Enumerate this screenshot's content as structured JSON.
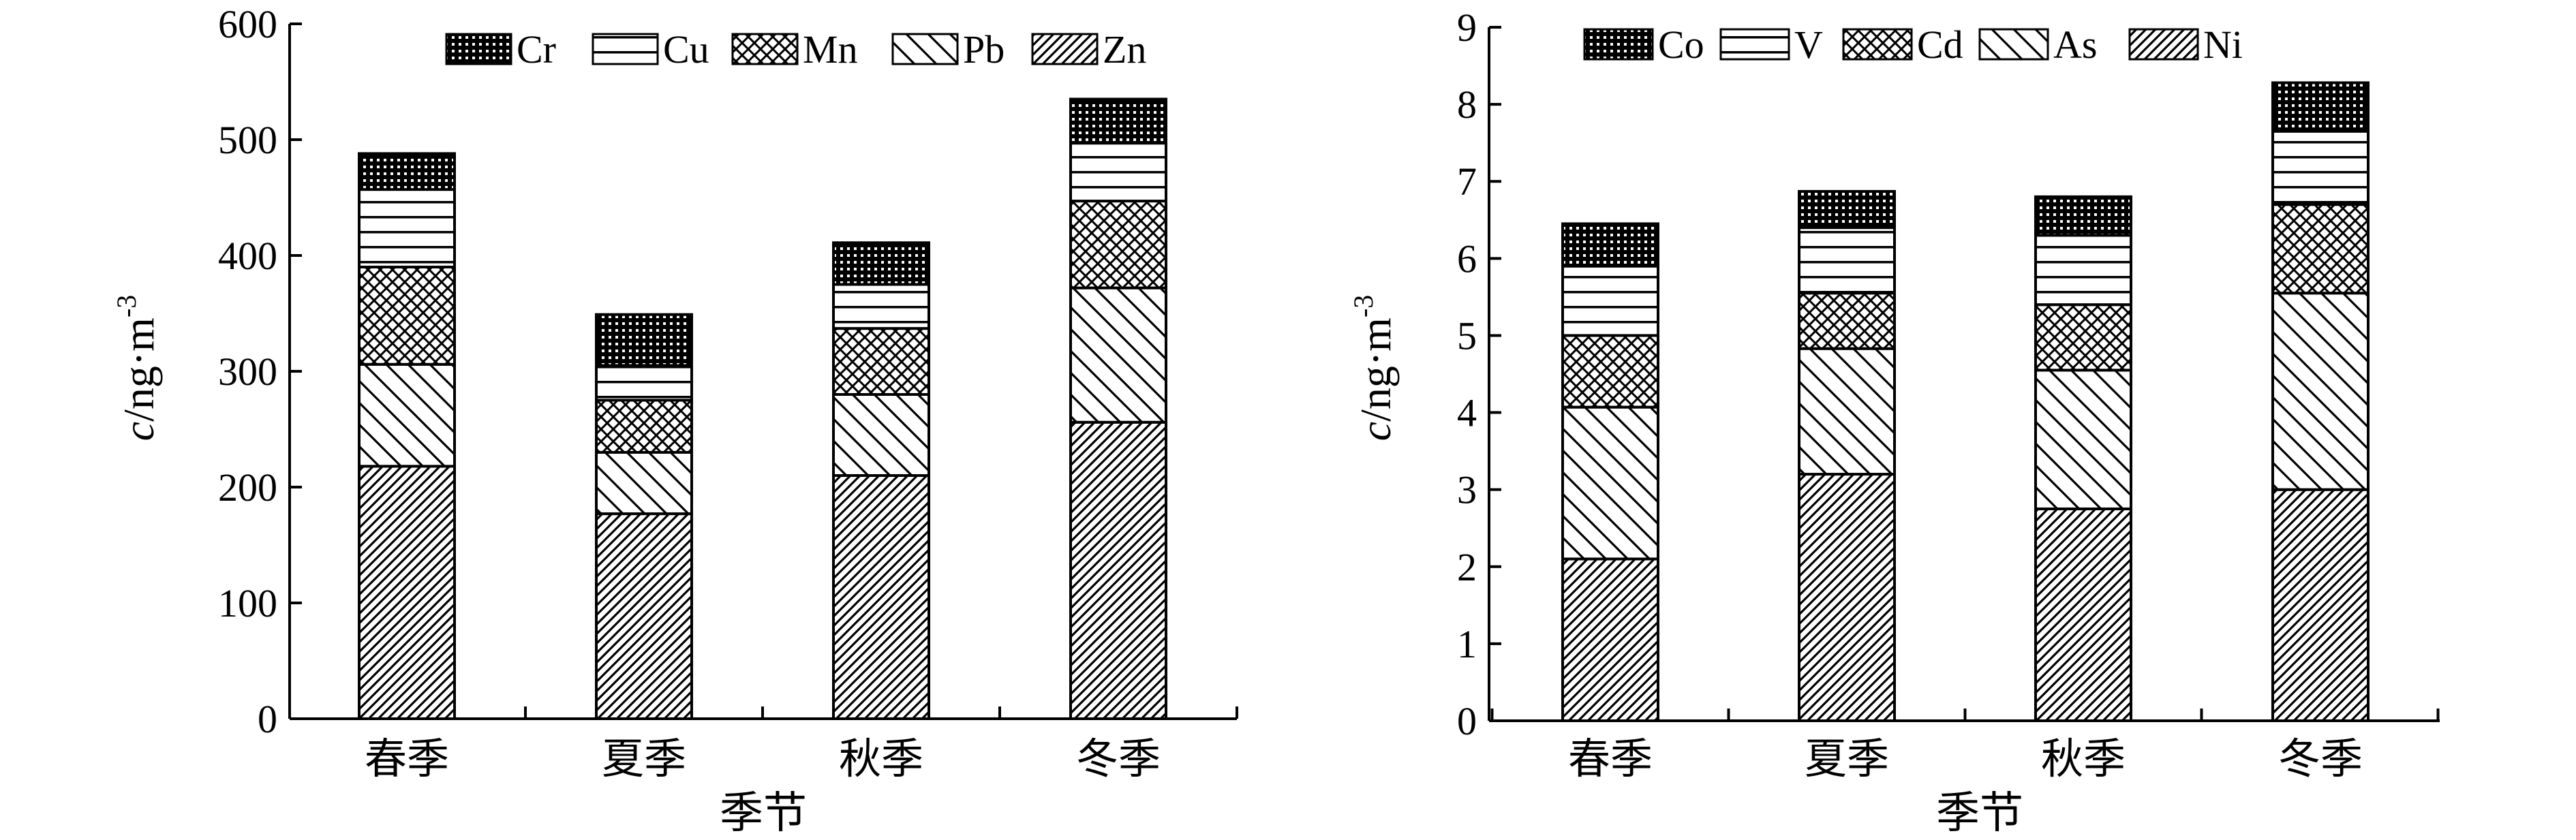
{
  "chart_data": [
    {
      "type": "bar",
      "stacked": true,
      "categories": [
        "春季",
        "夏季",
        "秋季",
        "冬季"
      ],
      "ylim": [
        0,
        600
      ],
      "yticks": [
        0,
        100,
        200,
        300,
        400,
        500,
        600
      ],
      "xlabel": "季节",
      "ylabel_main": "c",
      "ylabel_unit": "/ng·m",
      "ylabel_exp": "-3",
      "legend_position": "top",
      "series": [
        {
          "name": "Zn",
          "pattern": "diag-dense",
          "values": [
            218,
            177,
            210,
            256
          ]
        },
        {
          "name": "Pb",
          "pattern": "diag-back",
          "values": [
            88,
            53,
            70,
            116
          ]
        },
        {
          "name": "Mn",
          "pattern": "crosshatch",
          "values": [
            84,
            45,
            57,
            75
          ]
        },
        {
          "name": "Cu",
          "pattern": "horizontal",
          "values": [
            67,
            30,
            38,
            50
          ]
        },
        {
          "name": "Cr",
          "pattern": "dots",
          "values": [
            31,
            44,
            36,
            38
          ]
        }
      ]
    },
    {
      "type": "bar",
      "stacked": true,
      "categories": [
        "春季",
        "夏季",
        "秋季",
        "冬季"
      ],
      "ylim": [
        0,
        9
      ],
      "yticks": [
        0,
        1,
        2,
        3,
        4,
        5,
        6,
        7,
        8,
        9
      ],
      "xlabel": "季节",
      "ylabel_main": "c",
      "ylabel_unit": "/ng·m",
      "ylabel_exp": "-3",
      "legend_position": "top",
      "series": [
        {
          "name": "Ni",
          "pattern": "diag-dense",
          "values": [
            2.1,
            3.2,
            2.75,
            3.0
          ]
        },
        {
          "name": "As",
          "pattern": "diag-back",
          "values": [
            1.97,
            1.63,
            1.8,
            2.55
          ]
        },
        {
          "name": "Cd",
          "pattern": "crosshatch",
          "values": [
            0.93,
            0.72,
            0.85,
            1.15
          ]
        },
        {
          "name": "V",
          "pattern": "horizontal",
          "values": [
            0.9,
            0.85,
            0.9,
            0.95
          ]
        },
        {
          "name": "Co",
          "pattern": "dots",
          "values": [
            0.55,
            0.47,
            0.5,
            0.63
          ]
        }
      ]
    }
  ]
}
